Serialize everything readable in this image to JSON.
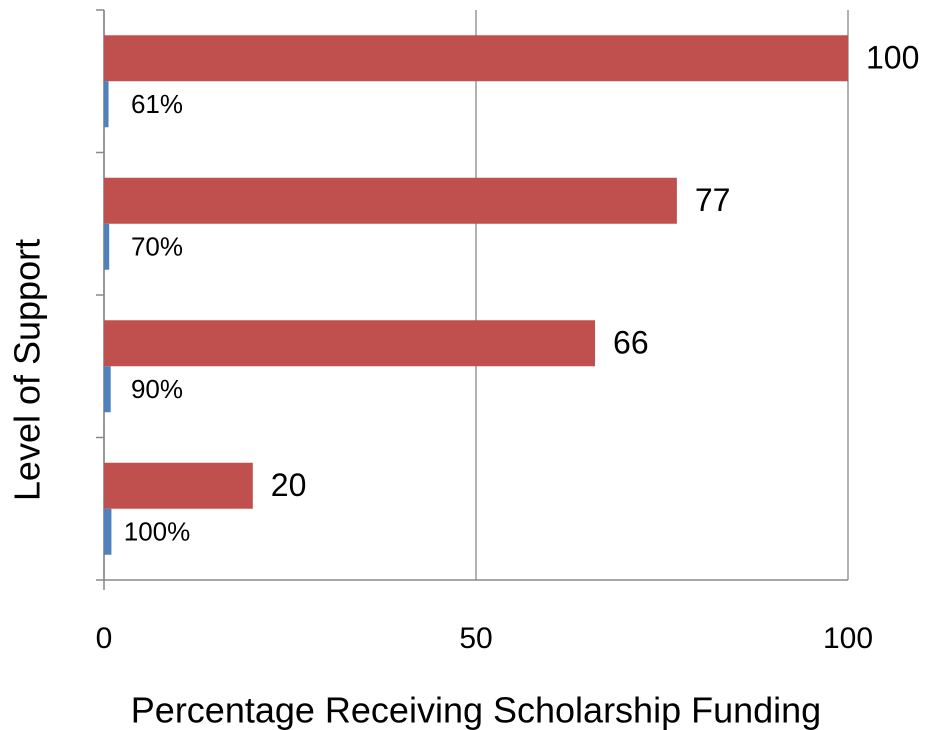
{
  "chart_data": {
    "type": "bar",
    "orientation": "horizontal",
    "xlabel": "Percentage Receiving Scholarship Funding",
    "ylabel": "Level of Support",
    "categories": [
      null,
      null,
      null,
      null
    ],
    "series": [
      {
        "color": "#c0504d",
        "values": [
          100,
          77,
          66,
          20
        ]
      },
      {
        "color": "#4f81bd",
        "values": [
          0.61,
          0.7,
          0.9,
          1.0
        ],
        "value_labels": [
          "61%",
          "70%",
          "90%",
          "100%"
        ]
      }
    ],
    "xlim": [
      0,
      100
    ],
    "xticks": [
      0,
      50,
      100
    ],
    "grid": true
  }
}
